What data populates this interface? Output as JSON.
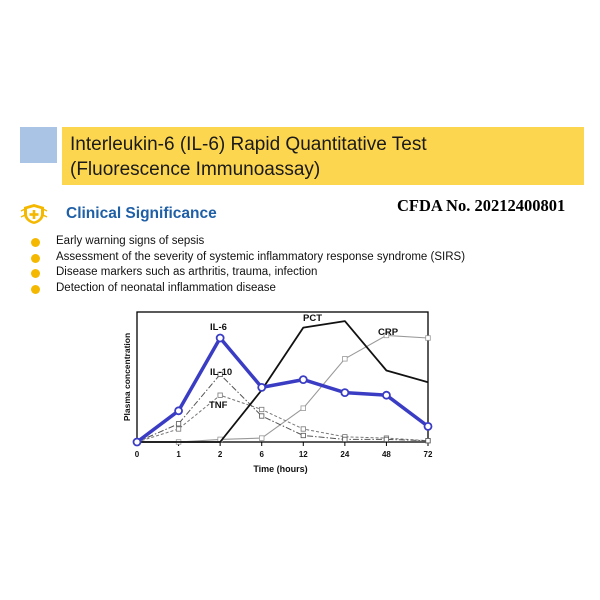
{
  "header": {
    "title_line1": "Interleukin-6 (IL-6) Rapid Quantitative Test",
    "title_line2": "(Fluorescence Immunoassay)",
    "accent_color": "#a9c4e4",
    "banner_color": "#fdd64f"
  },
  "section": {
    "icon": "shield-plus-icon",
    "title": "Clinical Significance",
    "title_color": "#1f5fa6"
  },
  "cfda": "CFDA No. 20212400801",
  "bullets": [
    "Early warning signs of sepsis",
    "Assessment of the severity of systemic inflammatory response syndrome (SIRS)",
    "Disease markers such as arthritis, trauma, infection",
    "Detection of neonatal inflammation disease"
  ],
  "chart_data": {
    "type": "line",
    "xlabel": "Time (hours)",
    "ylabel": "Plasma concentration",
    "categories": [
      "0",
      "1",
      "2",
      "6",
      "12",
      "24",
      "48",
      "72"
    ],
    "ylim": [
      0,
      100
    ],
    "grid": false,
    "series": [
      {
        "name": "IL-6",
        "color": "#3a3dc4",
        "style": "thick",
        "values": [
          0,
          24,
          80,
          42,
          48,
          38,
          36,
          12
        ]
      },
      {
        "name": "PCT",
        "color": "#111111",
        "style": "solid",
        "values": [
          0,
          0,
          0,
          40,
          88,
          93,
          55,
          46
        ]
      },
      {
        "name": "CRP",
        "color": "#999999",
        "style": "thin",
        "values": [
          0,
          0,
          2,
          3,
          26,
          64,
          82,
          80
        ]
      },
      {
        "name": "IL-10",
        "color": "#555555",
        "style": "dashdot",
        "values": [
          0,
          14,
          52,
          20,
          5,
          2,
          2,
          1
        ]
      },
      {
        "name": "TNF",
        "color": "#777777",
        "style": "dashed",
        "values": [
          0,
          10,
          36,
          25,
          10,
          4,
          3,
          1
        ]
      }
    ]
  }
}
